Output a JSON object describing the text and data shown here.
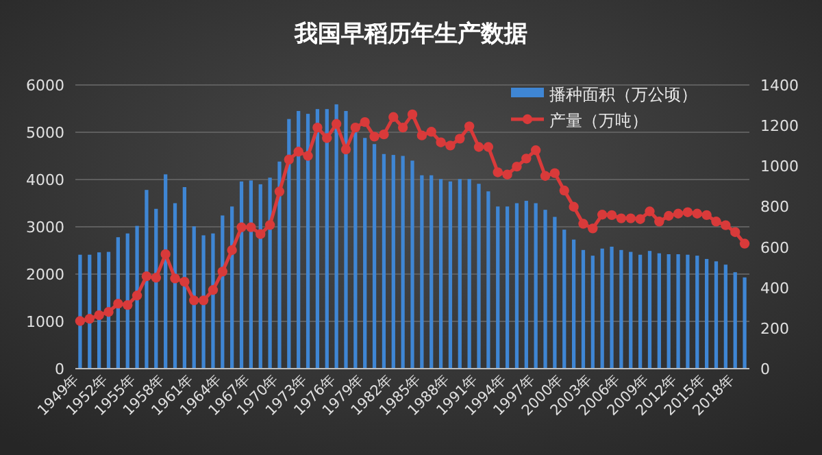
{
  "chart_data": {
    "type": "bar",
    "title": "我国早稻历年生产数据",
    "categories": [
      "1949年",
      null,
      null,
      "1952年",
      null,
      null,
      "1955年",
      null,
      null,
      "1958年",
      null,
      null,
      "1961年",
      null,
      null,
      "1964年",
      null,
      null,
      "1967年",
      null,
      null,
      "1970年",
      null,
      null,
      "1973年",
      null,
      null,
      "1976年",
      null,
      null,
      "1979年",
      null,
      null,
      "1982年",
      null,
      null,
      "1985年",
      null,
      null,
      "1988年",
      null,
      null,
      "1991年",
      null,
      null,
      "1994年",
      null,
      null,
      "1997年",
      null,
      null,
      "2000年",
      null,
      null,
      "2003年",
      null,
      null,
      "2006年",
      null,
      null,
      "2009年",
      null,
      null,
      "2012年",
      null,
      null,
      "2015年",
      null,
      null,
      "2018年",
      null
    ],
    "series": [
      {
        "name": "播种面积（万公顷）",
        "color": "#3f86d4",
        "values": [
          2410,
          2410,
          2460,
          2470,
          2780,
          2860,
          3020,
          3780,
          3380,
          4110,
          3500,
          3840,
          3010,
          2820,
          2860,
          3240,
          3430,
          3960,
          3980,
          3900,
          4040,
          4380,
          5280,
          5450,
          5390,
          5490,
          5490,
          5590,
          5450,
          5100,
          4880,
          4750,
          4540,
          4520,
          4500,
          4400,
          4090,
          4090,
          4010,
          3960,
          4010,
          4010,
          3910,
          3750,
          3430,
          3430,
          3500,
          3550,
          3500,
          3360,
          3210,
          2940,
          2730,
          2510,
          2390,
          2540,
          2580,
          2510,
          2470,
          2410,
          2490,
          2440,
          2420,
          2420,
          2410,
          2390,
          2320,
          2270,
          2200,
          2040,
          1930
        ]
      },
      {
        "name": "产量（万吨）",
        "type": "line",
        "axis": "y2",
        "color": "#d93a3a",
        "values": [
          235,
          246,
          264,
          280,
          321,
          314,
          361,
          456,
          449,
          565,
          445,
          429,
          337,
          337,
          388,
          479,
          585,
          698,
          698,
          664,
          709,
          874,
          1032,
          1071,
          1050,
          1190,
          1138,
          1208,
          1082,
          1190,
          1217,
          1145,
          1156,
          1242,
          1190,
          1255,
          1151,
          1169,
          1117,
          1101,
          1135,
          1196,
          1094,
          1094,
          969,
          958,
          997,
          1037,
          1078,
          951,
          965,
          879,
          799,
          715,
          692,
          760,
          758,
          742,
          742,
          738,
          776,
          726,
          754,
          765,
          772,
          765,
          758,
          726,
          708,
          674,
          617
        ]
      }
    ],
    "ylim": [
      0,
      6000
    ],
    "yticks": [
      0,
      1000,
      2000,
      3000,
      4000,
      5000,
      6000
    ],
    "y2lim": [
      0,
      1400
    ],
    "y2ticks": [
      0,
      200,
      400,
      600,
      800,
      1000,
      1200,
      1400
    ],
    "grid": "y",
    "legend": "top right",
    "marker": "circle",
    "line_style": "solid"
  }
}
